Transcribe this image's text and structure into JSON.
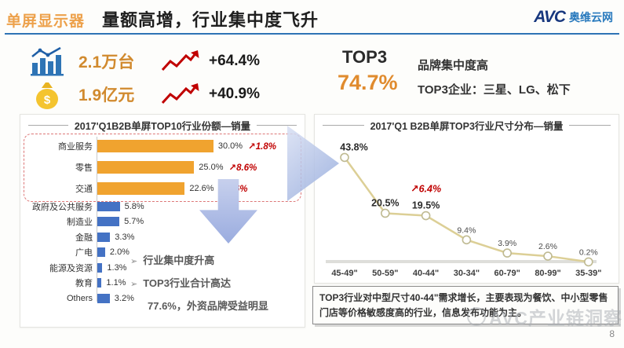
{
  "header": {
    "tag": "单屏显示器",
    "title": "量额高增，行业集中度飞升",
    "logo": {
      "abbr": "AVC",
      "name": "奥维云网"
    }
  },
  "stats": {
    "volume": {
      "icon": "bar-chart-icon",
      "value": "2.1万台",
      "change": "+64.4%"
    },
    "revenue": {
      "icon": "money-bag-icon",
      "value": "1.9亿元",
      "change": "+40.9%"
    },
    "top3": {
      "label": "TOP3",
      "value": "74.7%",
      "line1": "品牌集中度高",
      "line2": "TOP3企业：三星、LG、松下"
    }
  },
  "bullets": [
    "行业集中度升高",
    "TOP3行业合计高达",
    "77.6%，外资品牌受益明显"
  ],
  "note": "TOP3行业对中型尺寸40-44\"需求增长，主要表现为餐饮、中小型零售门店等价格敏感度高的行业，信息发布功能为主。",
  "watermark": "AVC产业链洞察",
  "page_number": "8",
  "chart_data": [
    {
      "type": "bar",
      "orientation": "horizontal",
      "title": "2017'Q1B2B单屏TOP10行业份额—销量",
      "categories": [
        "商业服务",
        "零售",
        "交通",
        "政府及公共服务",
        "制造业",
        "金融",
        "广电",
        "能源及资源",
        "教育",
        "Others"
      ],
      "values": [
        30.0,
        25.0,
        22.6,
        5.8,
        5.7,
        3.3,
        2.0,
        1.3,
        1.1,
        3.2
      ],
      "value_labels": [
        "30.0%",
        "25.0%",
        "22.6%",
        "5.8%",
        "5.7%",
        "3.3%",
        "2.0%",
        "1.3%",
        "1.1%",
        "3.2%"
      ],
      "changes": [
        "↗1.8%",
        "↗8.6%",
        "↗1.6%",
        "",
        "",
        "",
        "",
        "",
        "",
        ""
      ],
      "highlight_top": 3,
      "bar_color_top3": "#F0A32F",
      "bar_color_rest": "#4472C4",
      "xlim": [
        0,
        32
      ],
      "legend": "off",
      "grid": "off"
    },
    {
      "type": "line",
      "title": "2017'Q1 B2B单屏TOP3行业尺寸分布—销量",
      "categories": [
        "45-49\"",
        "50-59\"",
        "40-44\"",
        "30-34\"",
        "60-79\"",
        "80-99\"",
        "35-39\""
      ],
      "values": [
        43.8,
        20.5,
        19.5,
        9.4,
        3.9,
        2.6,
        0.2
      ],
      "value_labels": [
        "43.8%",
        "20.5%",
        "19.5%",
        "9.4%",
        "3.9%",
        "2.6%",
        "0.2%"
      ],
      "annotation": {
        "index": 2,
        "text": "↗6.4%",
        "color": "#C00000"
      },
      "line_color": "#DCCF96",
      "ylim": [
        0,
        50
      ],
      "legend": "off",
      "grid": "off"
    }
  ]
}
